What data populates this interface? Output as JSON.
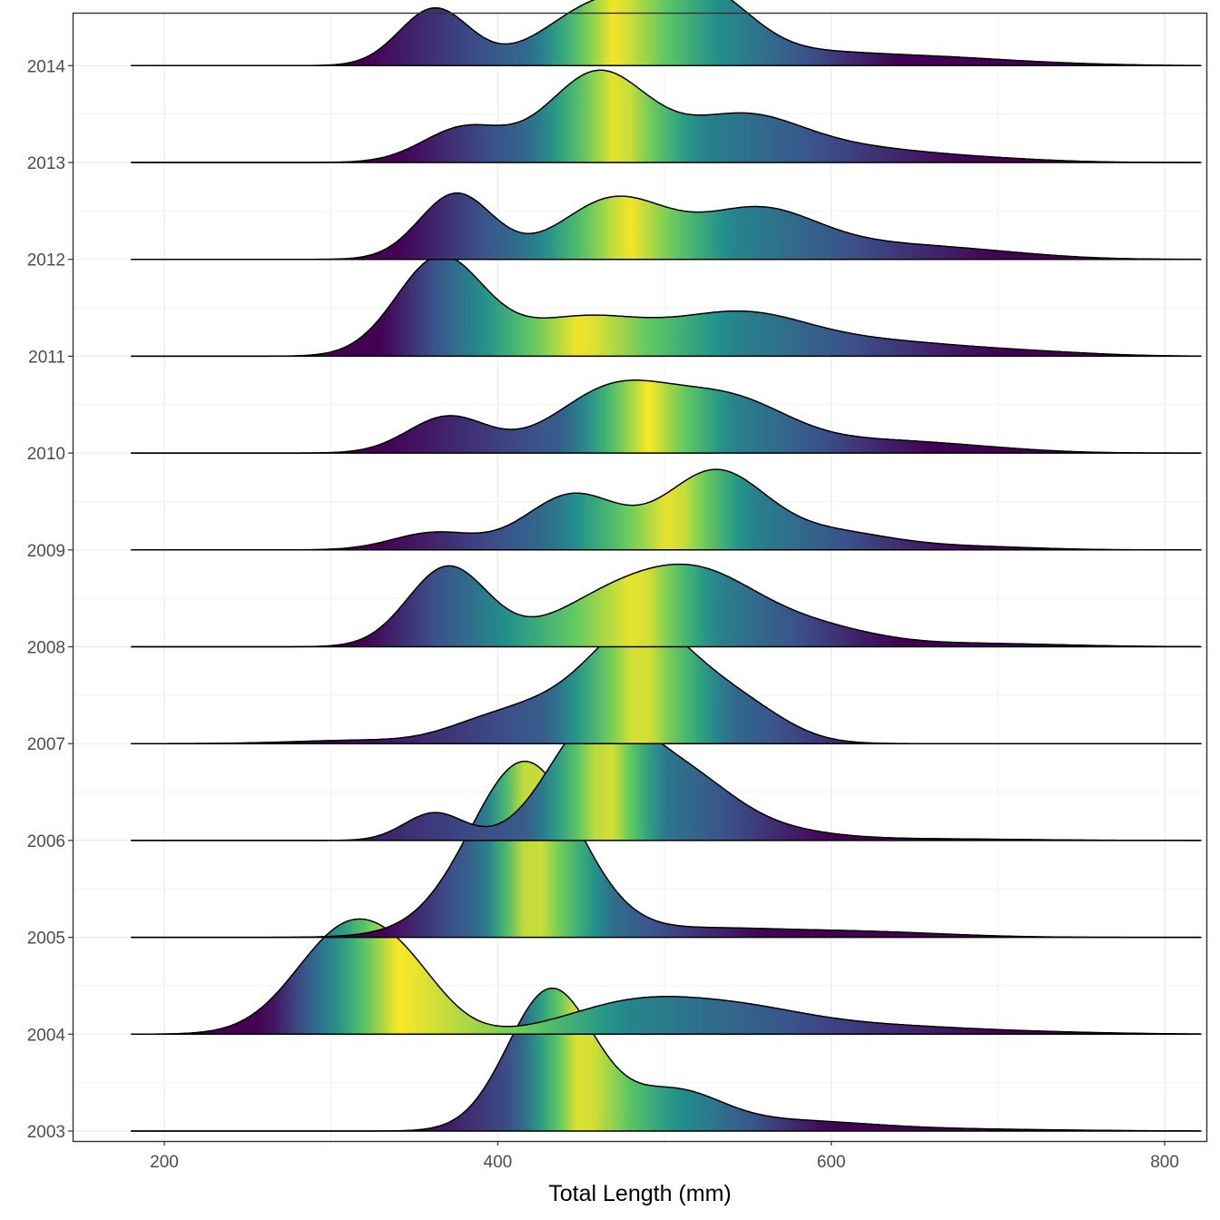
{
  "chart_data": {
    "type": "ridgeline",
    "title": "",
    "xlabel": "Total Length (mm)",
    "ylabel": "",
    "xlim": [
      145,
      825
    ],
    "x_ticks": [
      200,
      400,
      600,
      800
    ],
    "x_range": [
      180,
      822
    ],
    "colormap": "viridis",
    "colormap_stops": [
      "#440154",
      "#3b528b",
      "#21918c",
      "#5ec962",
      "#fde725"
    ],
    "outline_color": "#000000",
    "grid": true,
    "legend": "none",
    "series": [
      {
        "name": "2003",
        "peaks": [
          {
            "x": 432,
            "height": 0.82,
            "sd": 26
          },
          {
            "x": 505,
            "height": 0.21,
            "sd": 28
          },
          {
            "x": 570,
            "height": 0.06,
            "sd": 50
          },
          {
            "x": 680,
            "height": 0.01,
            "sd": 60
          }
        ],
        "fill": {
          "x": [
            350,
            410,
            450,
            500,
            600
          ],
          "c": [
            0.0,
            0.25,
            1.0,
            0.55,
            0.0
          ]
        }
      },
      {
        "name": "2004",
        "peaks": [
          {
            "x": 312,
            "height": 0.63,
            "sd": 32
          },
          {
            "x": 350,
            "height": 0.14,
            "sd": 22
          },
          {
            "x": 480,
            "height": 0.17,
            "sd": 40
          },
          {
            "x": 545,
            "height": 0.12,
            "sd": 40
          },
          {
            "x": 620,
            "height": 0.05,
            "sd": 55
          },
          {
            "x": 720,
            "height": 0.01,
            "sd": 50
          }
        ],
        "fill": {
          "x": [
            260,
            300,
            340,
            420,
            480,
            700
          ],
          "c": [
            0.0,
            0.45,
            1.0,
            0.75,
            0.45,
            0.0
          ]
        }
      },
      {
        "name": "2005",
        "peaks": [
          {
            "x": 417,
            "height": 0.98,
            "sd": 32
          },
          {
            "x": 380,
            "height": 0.06,
            "sd": 35
          },
          {
            "x": 520,
            "height": 0.05,
            "sd": 50
          },
          {
            "x": 620,
            "height": 0.03,
            "sd": 50
          }
        ],
        "fill": {
          "x": [
            330,
            390,
            420,
            470,
            560
          ],
          "c": [
            0.0,
            0.35,
            1.0,
            0.35,
            0.0
          ]
        }
      },
      {
        "name": "2006",
        "peaks": [
          {
            "x": 362,
            "height": 0.16,
            "sd": 18
          },
          {
            "x": 458,
            "height": 0.66,
            "sd": 28
          },
          {
            "x": 510,
            "height": 0.34,
            "sd": 30
          },
          {
            "x": 560,
            "height": 0.06,
            "sd": 35
          },
          {
            "x": 650,
            "height": 0.01,
            "sd": 60
          }
        ],
        "fill": {
          "x": [
            280,
            420,
            465,
            500,
            600
          ],
          "c": [
            0.0,
            0.3,
            1.0,
            0.4,
            0.0
          ]
        }
      },
      {
        "name": "2007",
        "peaks": [
          {
            "x": 390,
            "height": 0.1,
            "sd": 25
          },
          {
            "x": 425,
            "height": 0.13,
            "sd": 25
          },
          {
            "x": 485,
            "height": 0.68,
            "sd": 32
          },
          {
            "x": 545,
            "height": 0.2,
            "sd": 28
          },
          {
            "x": 320,
            "height": 0.02,
            "sd": 40
          }
        ],
        "fill": {
          "x": [
            300,
            430,
            485,
            540,
            640
          ],
          "c": [
            0.0,
            0.3,
            1.0,
            0.35,
            0.0
          ]
        }
      },
      {
        "name": "2008",
        "peaks": [
          {
            "x": 370,
            "height": 0.46,
            "sd": 24
          },
          {
            "x": 470,
            "height": 0.28,
            "sd": 38
          },
          {
            "x": 525,
            "height": 0.34,
            "sd": 35
          },
          {
            "x": 590,
            "height": 0.1,
            "sd": 35
          },
          {
            "x": 680,
            "height": 0.02,
            "sd": 55
          }
        ],
        "fill": {
          "x": [
            320,
            390,
            485,
            530,
            640
          ],
          "c": [
            0.0,
            0.4,
            1.0,
            0.45,
            0.0
          ]
        }
      },
      {
        "name": "2009",
        "peaks": [
          {
            "x": 362,
            "height": 0.1,
            "sd": 25
          },
          {
            "x": 445,
            "height": 0.32,
            "sd": 28
          },
          {
            "x": 530,
            "height": 0.45,
            "sd": 30
          },
          {
            "x": 600,
            "height": 0.1,
            "sd": 35
          },
          {
            "x": 680,
            "height": 0.02,
            "sd": 40
          }
        ],
        "fill": {
          "x": [
            330,
            430,
            505,
            550,
            680
          ],
          "c": [
            0.0,
            0.35,
            1.0,
            0.45,
            0.0
          ]
        }
      },
      {
        "name": "2010",
        "peaks": [
          {
            "x": 370,
            "height": 0.21,
            "sd": 24
          },
          {
            "x": 470,
            "height": 0.37,
            "sd": 35
          },
          {
            "x": 540,
            "height": 0.29,
            "sd": 35
          },
          {
            "x": 620,
            "height": 0.06,
            "sd": 40
          },
          {
            "x": 680,
            "height": 0.03,
            "sd": 40
          }
        ],
        "fill": {
          "x": [
            330,
            440,
            490,
            540,
            660
          ],
          "c": [
            0.0,
            0.3,
            1.0,
            0.45,
            0.0
          ]
        }
      },
      {
        "name": "2011",
        "peaks": [
          {
            "x": 365,
            "height": 0.56,
            "sd": 26
          },
          {
            "x": 450,
            "height": 0.22,
            "sd": 40
          },
          {
            "x": 545,
            "height": 0.23,
            "sd": 40
          },
          {
            "x": 630,
            "height": 0.08,
            "sd": 50
          },
          {
            "x": 720,
            "height": 0.02,
            "sd": 40
          }
        ],
        "fill": {
          "x": [
            330,
            380,
            450,
            540,
            700
          ],
          "c": [
            0.0,
            0.4,
            1.0,
            0.45,
            0.0
          ]
        }
      },
      {
        "name": "2012",
        "peaks": [
          {
            "x": 375,
            "height": 0.38,
            "sd": 22
          },
          {
            "x": 470,
            "height": 0.35,
            "sd": 32
          },
          {
            "x": 555,
            "height": 0.27,
            "sd": 35
          },
          {
            "x": 630,
            "height": 0.08,
            "sd": 50
          },
          {
            "x": 700,
            "height": 0.02,
            "sd": 40
          }
        ],
        "fill": {
          "x": [
            340,
            420,
            478,
            540,
            700
          ],
          "c": [
            0.0,
            0.4,
            1.0,
            0.45,
            0.0
          ]
        }
      },
      {
        "name": "2013",
        "peaks": [
          {
            "x": 380,
            "height": 0.2,
            "sd": 25
          },
          {
            "x": 460,
            "height": 0.52,
            "sd": 30
          },
          {
            "x": 545,
            "height": 0.25,
            "sd": 35
          },
          {
            "x": 610,
            "height": 0.08,
            "sd": 45
          },
          {
            "x": 690,
            "height": 0.02,
            "sd": 40
          }
        ],
        "fill": {
          "x": [
            340,
            420,
            472,
            520,
            680
          ],
          "c": [
            0.0,
            0.35,
            1.0,
            0.45,
            0.0
          ]
        }
      },
      {
        "name": "2014",
        "peaks": [
          {
            "x": 362,
            "height": 0.33,
            "sd": 21
          },
          {
            "x": 465,
            "height": 0.37,
            "sd": 35
          },
          {
            "x": 525,
            "height": 0.36,
            "sd": 28
          },
          {
            "x": 590,
            "height": 0.07,
            "sd": 40
          },
          {
            "x": 665,
            "height": 0.04,
            "sd": 40
          },
          {
            "x": 730,
            "height": 0.01,
            "sd": 40
          }
        ],
        "fill": {
          "x": [
            320,
            420,
            470,
            530,
            640
          ],
          "c": [
            0.0,
            0.35,
            1.0,
            0.5,
            0.0
          ]
        }
      }
    ]
  }
}
